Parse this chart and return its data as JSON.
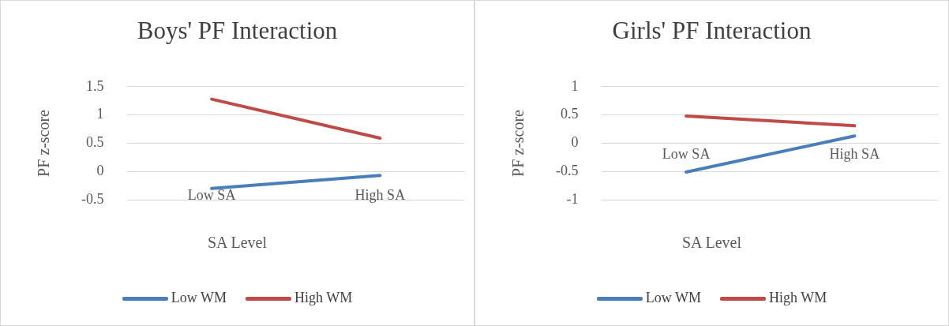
{
  "chart_data": [
    {
      "type": "line",
      "title": "Boys' PF Interaction",
      "xlabel": "SA Level",
      "ylabel": "PF z-score",
      "categories": [
        "Low SA",
        "High SA"
      ],
      "series": [
        {
          "name": "Low WM",
          "color": "#4a7ebb",
          "values": [
            -0.3,
            -0.07
          ]
        },
        {
          "name": "High WM",
          "color": "#be4b48",
          "values": [
            1.28,
            0.59
          ]
        }
      ],
      "ylim": [
        -0.5,
        1.5
      ],
      "yticks": [
        -0.5,
        0,
        0.5,
        1,
        1.5
      ],
      "grid": "y",
      "legend": "bottom",
      "marker": "none",
      "line_style": "solid"
    },
    {
      "type": "line",
      "title": "Girls' PF Interaction",
      "xlabel": "SA Level",
      "ylabel": "PF z-score",
      "categories": [
        "Low SA",
        "High SA"
      ],
      "series": [
        {
          "name": "Low WM",
          "color": "#4a7ebb",
          "values": [
            -0.51,
            0.13
          ]
        },
        {
          "name": "High WM",
          "color": "#be4b48",
          "values": [
            0.48,
            0.31
          ]
        }
      ],
      "ylim": [
        -1,
        1
      ],
      "yticks": [
        -1,
        -0.5,
        0,
        0.5,
        1
      ],
      "grid": "y",
      "legend": "bottom",
      "marker": "none",
      "line_style": "solid"
    }
  ]
}
